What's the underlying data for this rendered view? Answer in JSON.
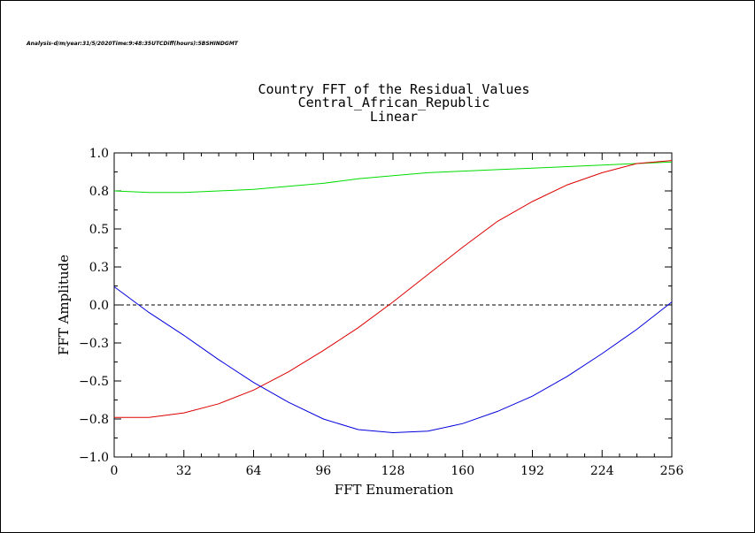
{
  "header_text": "Analysis-d/m/year:31/5/2020Time:9:48:35UTCDiff(hours):5BSHINDGMT",
  "chart_data": {
    "type": "line",
    "title_lines": [
      "Country FFT of the Residual Values",
      "Central_African_Republic",
      "Linear"
    ],
    "xlabel": "FFT Enumeration",
    "ylabel": "FFT Amplitude",
    "xlim": [
      0,
      256
    ],
    "ylim": [
      -1.0,
      1.0
    ],
    "xticks": [
      0,
      32,
      64,
      96,
      128,
      160,
      192,
      224,
      256
    ],
    "xtick_labels": [
      "0",
      "32",
      "64",
      "96",
      "128",
      "160",
      "192",
      "224",
      "256"
    ],
    "yticks": [
      -1.0,
      -0.75,
      -0.5,
      -0.25,
      0.0,
      0.25,
      0.5,
      0.75,
      1.0
    ],
    "ytick_labels": [
      "−1.0",
      "−0.8",
      "−0.5",
      "−0.3",
      "0.0",
      "0.3",
      "0.5",
      "0.8",
      "1.0"
    ],
    "zero_line": 0.0,
    "grid": false,
    "x": [
      0,
      16,
      32,
      48,
      64,
      80,
      96,
      112,
      128,
      144,
      160,
      176,
      192,
      208,
      224,
      240,
      256
    ],
    "series": [
      {
        "color": "#00dd00",
        "values": [
          0.75,
          0.74,
          0.74,
          0.75,
          0.76,
          0.78,
          0.8,
          0.83,
          0.85,
          0.87,
          0.88,
          0.89,
          0.9,
          0.91,
          0.92,
          0.93,
          0.94
        ]
      },
      {
        "color": "#dd0000",
        "values": [
          -0.74,
          -0.74,
          -0.71,
          -0.65,
          -0.56,
          -0.44,
          -0.3,
          -0.15,
          0.02,
          0.2,
          0.38,
          0.55,
          0.68,
          0.79,
          0.87,
          0.93,
          0.95
        ]
      },
      {
        "color": "#0000dd",
        "values": [
          0.12,
          -0.05,
          -0.2,
          -0.36,
          -0.51,
          -0.64,
          -0.75,
          -0.82,
          -0.84,
          -0.83,
          -0.78,
          -0.7,
          -0.6,
          -0.47,
          -0.32,
          -0.16,
          0.02
        ]
      }
    ],
    "zero_line_color": "#000000"
  }
}
